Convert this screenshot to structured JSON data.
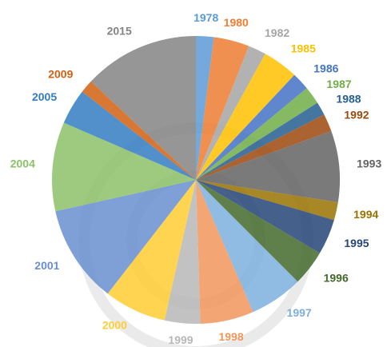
{
  "chart_data": {
    "type": "pie",
    "categories": [
      "1978",
      "1980",
      "1982",
      "1985",
      "1986",
      "1987",
      "1988",
      "1992",
      "1993",
      "1994",
      "1995",
      "1996",
      "1997",
      "1998",
      "1999",
      "2000",
      "2001",
      "2004",
      "2005",
      "2009",
      "2015"
    ],
    "values": [
      2,
      4,
      2,
      4,
      2,
      2,
      1.5,
      2,
      8,
      2,
      4,
      4,
      6,
      6,
      4,
      7,
      11,
      10,
      4,
      1.5,
      13
    ],
    "colors": [
      "#5b9bd5",
      "#ed7d31",
      "#a5a5a5",
      "#ffc000",
      "#4472c4",
      "#70ad47",
      "#255e91",
      "#9e480e",
      "#636363",
      "#997300",
      "#264478",
      "#43682b",
      "#7cafdd",
      "#f1975a",
      "#b7b7b7",
      "#ffcd33",
      "#698ed0",
      "#8cc168",
      "#327dc2",
      "#d26012",
      "#848484"
    ]
  }
}
